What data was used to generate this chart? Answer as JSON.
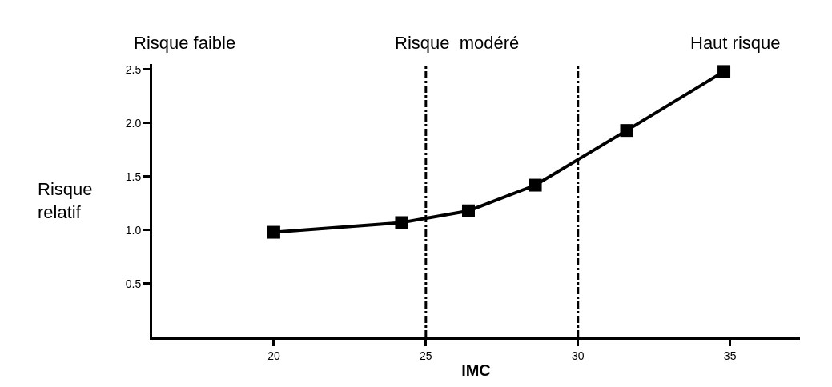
{
  "chart_data": {
    "type": "line",
    "xlabel": "IMC",
    "ylabel": "Risque relatif",
    "annotations": [
      "Risque faible",
      "Risque  modéré",
      "Haut risque"
    ],
    "x": [
      20,
      24.2,
      26.4,
      28.6,
      31.6,
      34.8
    ],
    "series": [
      {
        "color": "#000000",
        "values": [
          0.98,
          1.07,
          1.18,
          1.42,
          1.93,
          2.48
        ]
      }
    ],
    "xlim": [
      16,
      37.3
    ],
    "ylim": [
      0,
      2.55
    ],
    "xticks": [
      20,
      25,
      30,
      35
    ],
    "yticks": [
      {
        "value": 0.5,
        "label": "0.5"
      },
      {
        "value": 1,
        "label": "1.0"
      },
      {
        "value": 1.5,
        "label": "1.5"
      },
      {
        "value": 2,
        "label": "2.0"
      },
      {
        "value": 2.5,
        "label": "2.5"
      }
    ],
    "ref_lines": [
      {
        "axis": "x",
        "value": 25,
        "color": "#000000",
        "line_style": "dashdot"
      },
      {
        "axis": "x",
        "value": 30,
        "color": "#000000",
        "line_style": "dashdot"
      }
    ],
    "marker": "square",
    "line_style": "solid"
  }
}
